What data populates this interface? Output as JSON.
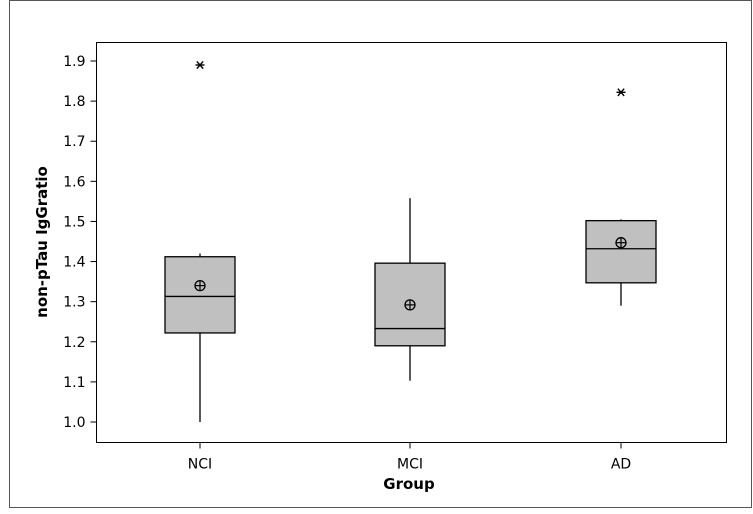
{
  "chart_data": {
    "type": "boxplot",
    "title": "",
    "xlabel": "Group",
    "ylabel": "non-pTau IgGratio",
    "ylim": [
      0.98,
      1.94
    ],
    "yticks": [
      "1.0",
      "1.1",
      "1.2",
      "1.3",
      "1.4",
      "1.5",
      "1.6",
      "1.7",
      "1.8",
      "1.9"
    ],
    "grid": false,
    "categories": [
      "NCI",
      "MCI",
      "AD"
    ],
    "boxes": [
      {
        "category": "NCI",
        "whisker_low": 1.0,
        "q1": 1.222,
        "median": 1.313,
        "q3": 1.412,
        "whisker_high": 1.42,
        "mean": 1.34,
        "outliers": [
          1.89
        ]
      },
      {
        "category": "MCI",
        "whisker_low": 1.103,
        "q1": 1.19,
        "median": 1.233,
        "q3": 1.396,
        "whisker_high": 1.558,
        "mean": 1.292,
        "outliers": []
      },
      {
        "category": "AD",
        "whisker_low": 1.29,
        "q1": 1.347,
        "median": 1.432,
        "q3": 1.502,
        "whisker_high": 1.505,
        "mean": 1.447,
        "outliers": [
          1.822
        ]
      }
    ],
    "colors": {
      "box_fill": "#c0c0c0",
      "line": "#000000",
      "panel_bg": "#ffffff",
      "outer_bg": "#ffffff"
    }
  }
}
